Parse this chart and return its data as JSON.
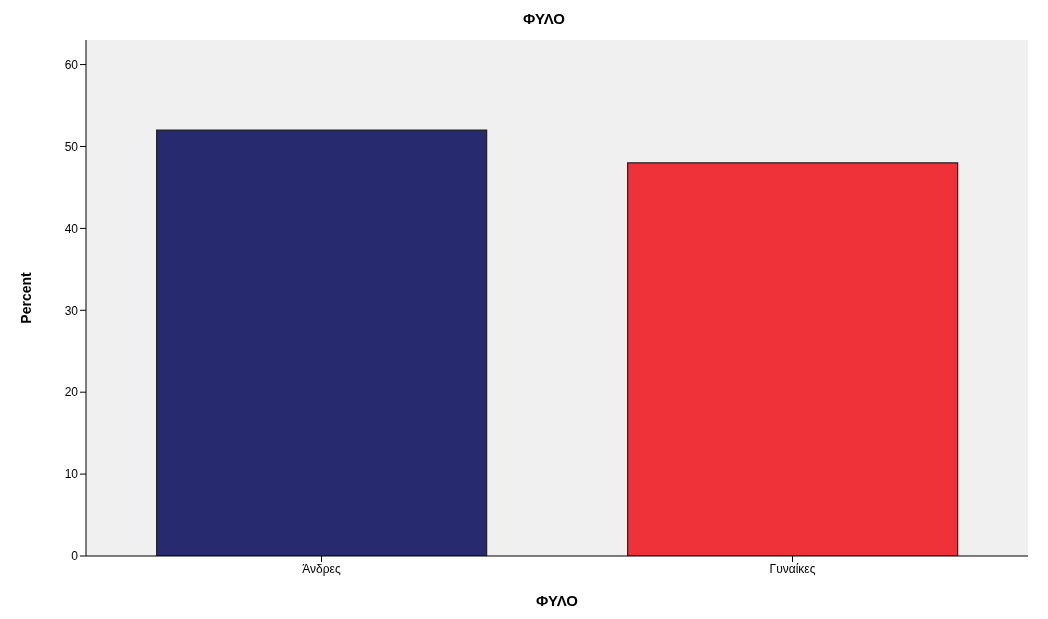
{
  "chart_data": {
    "type": "bar",
    "title": "ΦΥΛΟ",
    "xlabel": "ΦΥΛΟ",
    "ylabel": "Percent",
    "categories": [
      "Άνδρες",
      "Γυναίκες"
    ],
    "values": [
      52,
      48
    ],
    "colors": [
      "#272a6f",
      "#ef3139"
    ],
    "ylim": [
      0,
      63
    ],
    "yticks": [
      0,
      10,
      20,
      30,
      40,
      50,
      60
    ],
    "grid": false
  }
}
